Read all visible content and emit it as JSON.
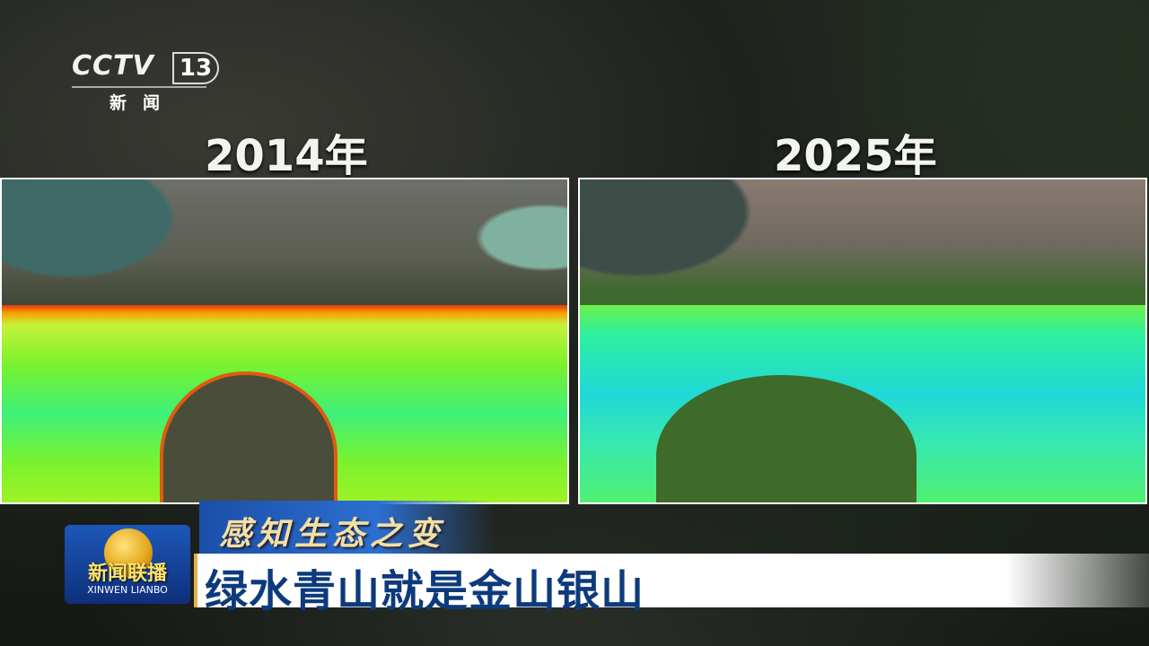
{
  "channel_logo": {
    "brand": "CCTV",
    "number": "13",
    "subtitle": "新闻"
  },
  "comparison": {
    "left": {
      "year_label": "2014年"
    },
    "right": {
      "year_label": "2025年"
    }
  },
  "lower_third": {
    "series_title": "感知生态之变",
    "headline": "绿水青山就是金山银山",
    "program_logo": {
      "name_cn": "新闻联播",
      "name_pinyin": "XINWEN  LIANBO"
    }
  },
  "colors": {
    "headline_text": "#0c3a7c",
    "banner_blue": "#1b4ea8",
    "series_title_gold": "#f3dfa6"
  }
}
